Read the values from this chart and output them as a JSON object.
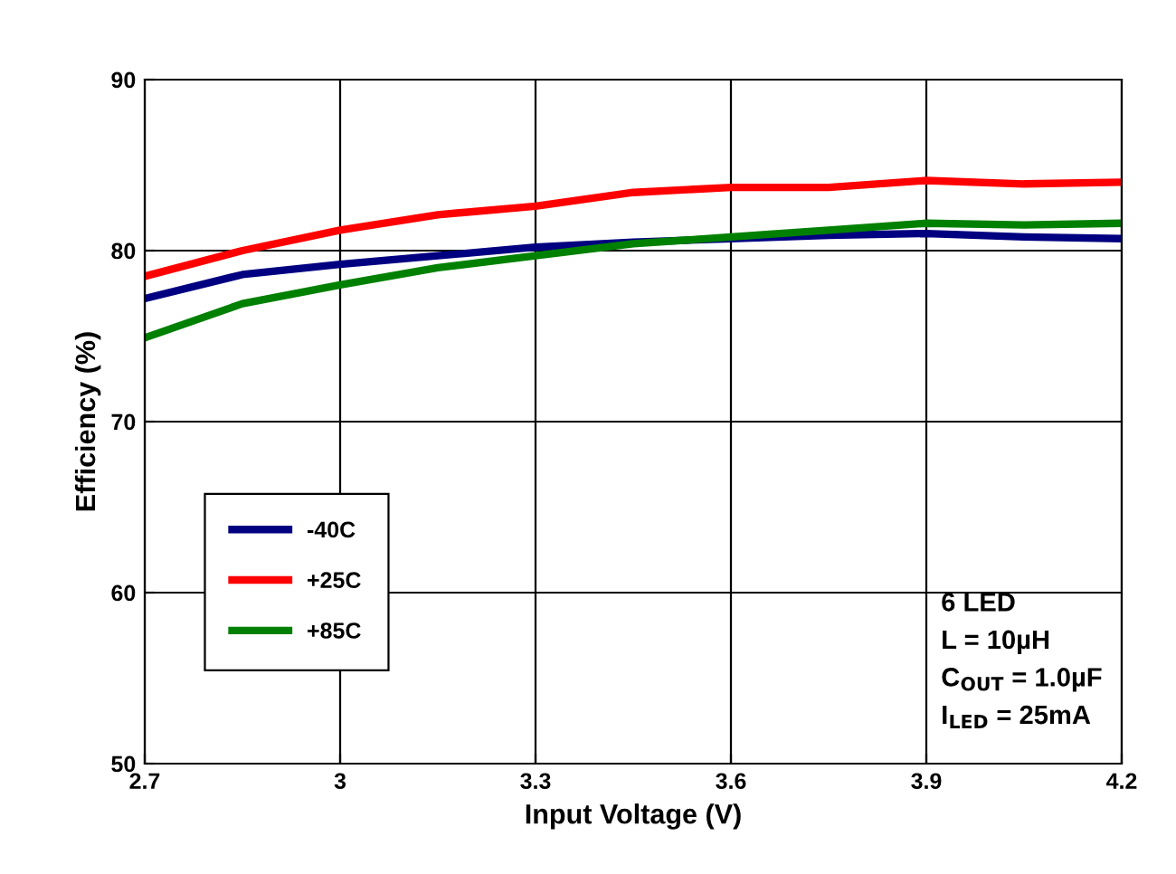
{
  "chart_data": {
    "type": "line",
    "xlabel": "Input Voltage (V)",
    "ylabel": "Efficiency (%)",
    "x": [
      2.7,
      2.85,
      3.0,
      3.15,
      3.3,
      3.45,
      3.6,
      3.75,
      3.9,
      4.05,
      4.2
    ],
    "series": [
      {
        "name": "-40C",
        "color": "#000080",
        "values": [
          77.2,
          78.6,
          79.2,
          79.7,
          80.2,
          80.5,
          80.7,
          80.9,
          81.0,
          80.8,
          80.7
        ]
      },
      {
        "name": "+25C",
        "color": "#ff0000",
        "values": [
          78.5,
          80.0,
          81.2,
          82.1,
          82.6,
          83.4,
          83.7,
          83.7,
          84.1,
          83.9,
          84.0
        ]
      },
      {
        "name": "+85C",
        "color": "#008000",
        "values": [
          74.9,
          76.9,
          78.0,
          79.0,
          79.7,
          80.4,
          80.8,
          81.2,
          81.6,
          81.5,
          81.6
        ]
      }
    ],
    "xlim": [
      2.7,
      4.2
    ],
    "xticks": [
      2.7,
      {
        "value": 3.0,
        "label": "3"
      },
      3.3,
      3.6,
      3.9,
      4.2
    ],
    "ylim": [
      50,
      90
    ],
    "yticks": [
      50,
      60,
      70,
      80,
      90
    ],
    "grid": true,
    "legend": "left",
    "marker": "none",
    "line_style": "solid",
    "annotations": [
      "6 LED",
      "L = 10µH",
      "C$_{OUT}$ = 1.0µF",
      "I$_{LED}$ = 25mA"
    ]
  }
}
